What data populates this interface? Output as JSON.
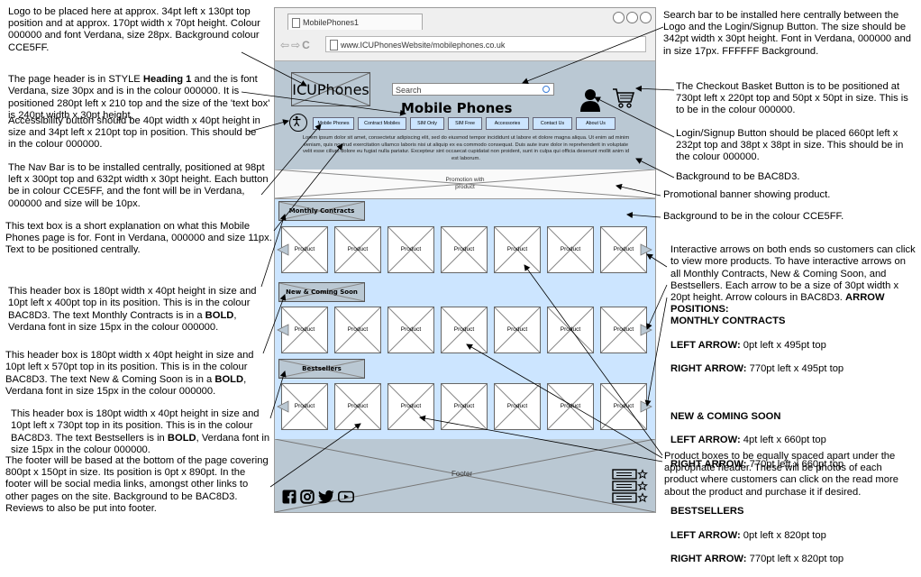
{
  "browser": {
    "tab_title": "MobilePhones1",
    "url": "www.ICUPhonesWebsite/mobilephones.co.uk"
  },
  "header": {
    "logo_text": "ICUPhones",
    "search_placeholder": "Search",
    "page_heading": "Mobile Phones",
    "nav_items": [
      "Mobile Phones",
      "Contract Mobiles",
      "SIM Only",
      "SIM Free",
      "Accessories",
      "Contact Us",
      "About Us"
    ],
    "intro_text": "Lorem ipsum dolor sit amet, consectetur adipiscing elit, sed do eiusmod tempor incididunt ut labore et dolore magna aliqua. Ut enim ad minim veniam, quis nostrud exercitation ullamco laboris nisi ut aliquip ex ea commodo consequat. Duis aute irure dolor in reprehenderit in voluptate velit esse cillum dolore eu fugiat nulla pariatur. Excepteur sint occaecat cupidatat non proident, sunt in culpa qui officia deserunt mollit anim id est laborum."
  },
  "promo": {
    "label_line1": "Promotion with",
    "label_line2": "product"
  },
  "sections": [
    {
      "title": "Monthly Contracts",
      "product_label": "Product"
    },
    {
      "title": "New & Coming Soon",
      "product_label": "Product"
    },
    {
      "title": "Bestsellers",
      "product_label": "Product"
    }
  ],
  "footer": {
    "label": "Footer"
  },
  "annotations": {
    "logo": "Logo to be placed here at approx. 34pt left x 130pt top position and at approx. 170pt width x 70pt height. Colour 000000 and font Verdana, size 28px. Background colour CCE5FF.",
    "page_header_1": "The page header is in STYLE ",
    "page_header_bold": "Heading 1",
    "page_header_2": " and the is font Verdana, size 30px and is in the colour 000000. It is positioned 280pt left x 210 top and the size of the 'text box' is 240pt width x 30pt height.",
    "accessibility": "Accessibility button should be 40pt width x 40pt height in size and 34pt left x 210pt top in position. This should be in the colour 000000.",
    "navbar": "The Nav Bar is to be installed centrally, positioned at 98pt left x 300pt top and 632pt width x 30pt height. Each button be in colour CCE5FF, and the font will be in Verdana, 000000 and size will be 10px.",
    "textbox": "This text box is a short explanation on what this Mobile Phones page is for. Font in Verdana, 000000 and size 11px. Text to be positioned centrally.",
    "monthly_1": "This header box is 180pt width x 40pt height in size and 10pt left x 400pt top in its position. This is in the colour BAC8D3. The text Monthly Contracts is in a ",
    "monthly_bold": "BOLD",
    "monthly_2": ", Verdana font in size 15px in the colour 000000.",
    "newcoming_1": "This header box is 180pt width x 40pt height in size and 10pt left x 570pt top in its position. This is in the colour BAC8D3. The text New & Coming Soon is in a ",
    "newcoming_bold": "BOLD",
    "newcoming_2": ", Verdana font in size 15px in the colour 000000.",
    "bestsellers_1": "This header box is 180pt width x 40pt height in size and 10pt left x 730pt top in its position. This is in the colour BAC8D3. The text Bestsellers is in ",
    "bestsellers_bold": "BOLD",
    "bestsellers_2": ", Verdana font in size 15px in the colour 000000.",
    "footer": "The footer will be based at the bottom of the page covering 800pt x 150pt in size. Its position is 0pt x 890pt. In the footer will be social media links, amongst other links to other pages on the site. Background to be BAC8D3. Reviews to also be put into footer.",
    "searchbar": "Search bar to be installed here centrally between the Logo and the Login/Signup Button. The size should be 342pt width x 30pt height. Font in Verdana, 000000 and in size 17px. FFFFFF Background.",
    "basket": "The Checkout Basket Button is to be positioned at 730pt left x 220pt top and 50pt x 50pt in size. This is to be in the colour 000000.",
    "login": "Login/Signup Button should be placed 660pt left x 232pt top and 38pt x 38pt in size. This should be in the colour 000000.",
    "bg_bac": "Background to be BAC8D3.",
    "promo": "Promotional banner showing product.",
    "bg_cce": "Background to be in the colour CCE5FF.",
    "arrows_intro_1": "Interactive arrows on both ends so customers can click to view more products. To have interactive arrows on all Monthly Contracts, New & Coming Soon, and Bestsellers. Each arrow to be a size of 30pt width x 20pt height. Arrow colours in BAC8D3. ",
    "arrows_intro_bold": "ARROW POSITIONS:",
    "arrows_mc_title": "MONTHLY CONTRACTS",
    "arrows_mc_left_b": "LEFT ARROW:",
    "arrows_mc_left": " 0pt left x 495pt top",
    "arrows_mc_right_b": "RIGHT ARROW:",
    "arrows_mc_right": " 770pt left x 495pt top",
    "arrows_nc_title": "NEW & COMING SOON",
    "arrows_nc_left_b": "LEFT ARROW:",
    "arrows_nc_left": " 4pt left x 660pt top",
    "arrows_nc_right_b": "RIGHT ARROW:",
    "arrows_nc_right": " 770pt left x 660pt top",
    "arrows_bs_title": "BESTSELLERS",
    "arrows_bs_left_b": "LEFT ARROW:",
    "arrows_bs_left": " 0pt left x 820pt top",
    "arrows_bs_right_b": "RIGHT ARROW:",
    "arrows_bs_right": " 770pt left x 820pt top",
    "products": "Product boxes to be equally spaced apart under the appropriate header. These will be photos of each product where customers can click on the read more about the product and purchase it if desired."
  },
  "colors": {
    "nav_bg": "#CCE5FF",
    "header_bg": "#BAC8D3",
    "content_bg": "#CCE5FF",
    "footer_bg": "#BAC8D3"
  }
}
